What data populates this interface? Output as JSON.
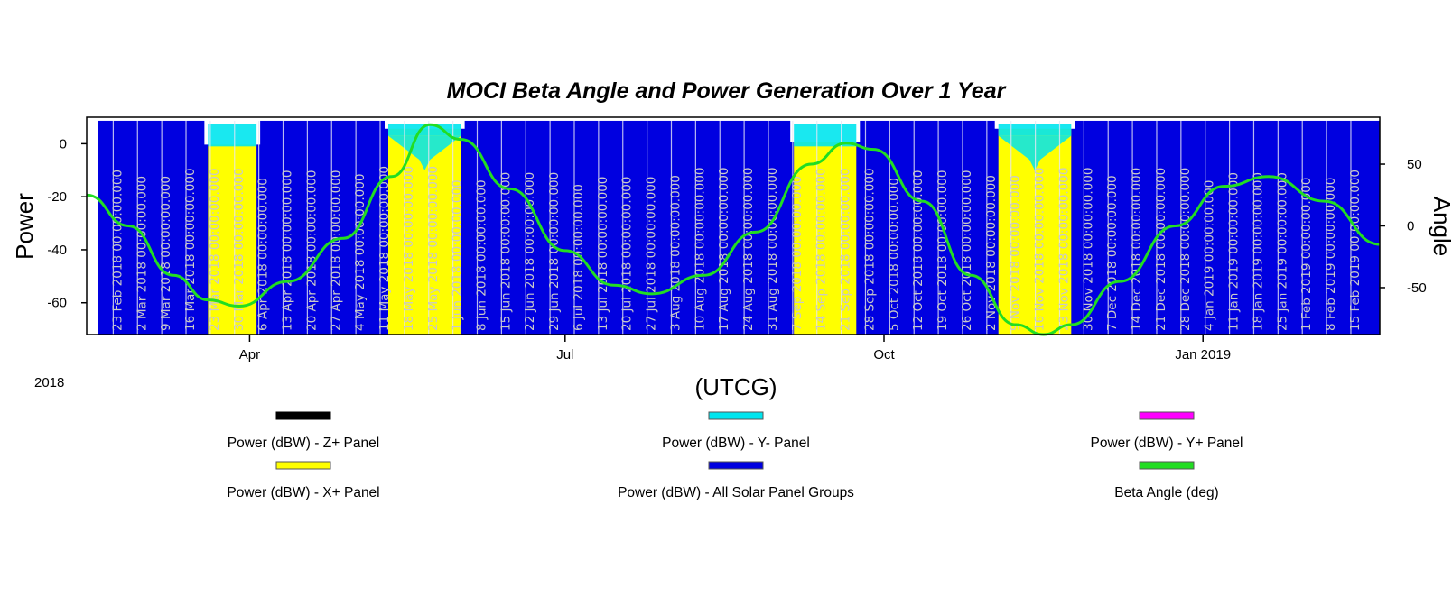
{
  "chart_data": {
    "type": "area",
    "title": "MOCI Beta Angle and Power Generation Over 1 Year",
    "xlabel": "(UTCG)",
    "ylabel": "Power",
    "y2label": "Angle",
    "year_label": "2018",
    "x_ticks": [
      {
        "date": "2018-04-01",
        "label": "Apr"
      },
      {
        "date": "2018-07-01",
        "label": "Jul"
      },
      {
        "date": "2018-10-01",
        "label": "Oct"
      },
      {
        "date": "2019-01-01",
        "label": "Jan 2019"
      }
    ],
    "xlim": [
      "2018-02-13",
      "2019-02-21"
    ],
    "ylim": [
      -72,
      10
    ],
    "y_ticks": [
      0,
      -20,
      -40,
      -60
    ],
    "y2lim": [
      -88,
      88
    ],
    "y2_ticks": [
      50,
      0,
      -50
    ],
    "grid": false,
    "date_labels": [
      "23 Feb 2018 00:00:00.000",
      "2 Mar 2018 00:00:00.000",
      "9 Mar 2018 00:00:00.000",
      "16 Mar 2018 00:00:00.000",
      "23 Mar 2018 00:00:00.000",
      "30 Mar 2018 00:00:00.000",
      "6 Apr 2018 00:00:00.000",
      "13 Apr 2018 00:00:00.000",
      "20 Apr 2018 00:00:00.000",
      "27 Apr 2018 00:00:00.000",
      "4 May 2018 00:00:00.000",
      "11 May 2018 00:00:00.000",
      "18 May 2018 00:00:00.000",
      "25 May 2018 00:00:00.000",
      "1 Jun 2018 00:00:00.000",
      "8 Jun 2018 00:00:00.000",
      "15 Jun 2018 00:00:00.000",
      "22 Jun 2018 00:00:00.000",
      "29 Jun 2018 00:00:00.000",
      "6 Jul 2018 00:00:00.000",
      "13 Jul 2018 00:00:00.000",
      "20 Jul 2018 00:00:00.000",
      "27 Jul 2018 00:00:00.000",
      "3 Aug 2018 00:00:00.000",
      "10 Aug 2018 00:00:00.000",
      "17 Aug 2018 00:00:00.000",
      "24 Aug 2018 00:00:00.000",
      "31 Aug 2018 00:00:00.000",
      "7 Sep 2018 00:00:00.000",
      "14 Sep 2018 00:00:00.000",
      "21 Sep 2018 00:00:00.000",
      "28 Sep 2018 00:00:00.000",
      "5 Oct 2018 00:00:00.000",
      "12 Oct 2018 00:00:00.000",
      "19 Oct 2018 00:00:00.000",
      "26 Oct 2018 00:00:00.000",
      "2 Nov 2018 00:00:00.000",
      "9 Nov 2018 00:00:00.000",
      "16 Nov 2018 00:00:00.000",
      "23 Nov 2018 00:00:00.000",
      "30 Nov 2018 00:00:00.000",
      "7 Dec 2018 00:00:00.000",
      "14 Dec 2018 00:00:00.000",
      "21 Dec 2018 00:00:00.000",
      "28 Dec 2018 00:00:00.000",
      "4 Jan 2019 00:00:00.000",
      "11 Jan 2019 00:00:00.000",
      "18 Jan 2019 00:00:00.000",
      "25 Jan 2019 00:00:00.000",
      "1 Feb 2019 00:00:00.000",
      "8 Feb 2019 00:00:00.000",
      "15 Feb 2019 00:00:00.000"
    ],
    "series": [
      {
        "name": "Power (dBW) - Z+ Panel",
        "color": "#000000",
        "axis": "left",
        "style": "line"
      },
      {
        "name": "Power (dBW) - Y- Panel",
        "color": "#00e5ee",
        "axis": "left",
        "style": "area"
      },
      {
        "name": "Power (dBW) - Y+ Panel",
        "color": "#ff00ff",
        "axis": "left",
        "style": "line"
      },
      {
        "name": "Power (dBW) - X+ Panel",
        "color": "#ffff00",
        "axis": "left",
        "style": "area",
        "segments": [
          {
            "start": "2018-03-20",
            "end": "2018-04-03",
            "value": 0
          },
          {
            "start": "2018-05-11",
            "end": "2018-06-01",
            "value": 6
          },
          {
            "start": "2018-09-05",
            "end": "2018-09-23",
            "value": 1
          },
          {
            "start": "2018-11-03",
            "end": "2018-11-24",
            "value": 6
          }
        ]
      },
      {
        "name": "Power (dBW) - All Solar Panel Groups",
        "color": "#0000e0",
        "axis": "left",
        "style": "area",
        "value": 9
      },
      {
        "name": "Beta Angle (deg)",
        "color": "#22dd22",
        "axis": "right",
        "style": "line",
        "x": [
          "2018-02-13",
          "2018-02-25",
          "2018-03-10",
          "2018-03-20",
          "2018-03-29",
          "2018-04-12",
          "2018-04-28",
          "2018-05-12",
          "2018-05-23",
          "2018-06-01",
          "2018-06-15",
          "2018-07-01",
          "2018-07-15",
          "2018-07-26",
          "2018-08-10",
          "2018-08-25",
          "2018-09-10",
          "2018-09-20",
          "2018-09-28",
          "2018-10-12",
          "2018-10-26",
          "2018-11-08",
          "2018-11-16",
          "2018-11-24",
          "2018-12-08",
          "2018-12-24",
          "2019-01-07",
          "2019-01-20",
          "2019-02-05",
          "2019-02-21"
        ],
        "values": [
          25,
          0,
          -40,
          -60,
          -65,
          -45,
          -10,
          40,
          82,
          70,
          30,
          -20,
          -48,
          -55,
          -40,
          -5,
          50,
          67,
          62,
          20,
          -40,
          -80,
          -88,
          -80,
          -45,
          0,
          32,
          40,
          20,
          -15
        ]
      }
    ],
    "legend": {
      "position": "bottom",
      "columns": 3
    }
  }
}
